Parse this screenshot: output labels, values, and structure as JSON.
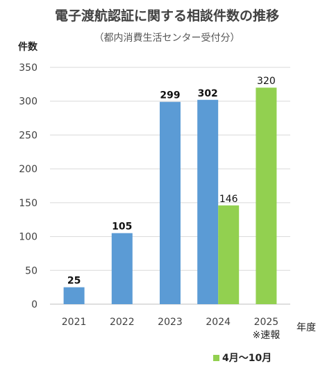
{
  "chart_data": {
    "type": "bar",
    "title": "電子渡航認証に関する相談件数の推移",
    "subtitle": "（都内消費生活センター受付分）",
    "ylabel": "件数",
    "xlabel": "年度",
    "ylim": [
      0,
      350
    ],
    "yticks": [
      0,
      50,
      100,
      150,
      200,
      250,
      300,
      350
    ],
    "grid": true,
    "categories": [
      "2021",
      "2022",
      "2023",
      "2024",
      "2025"
    ],
    "series": [
      {
        "values": [
          25,
          105,
          299,
          302,
          null
        ],
        "color": "#5B9BD5"
      },
      {
        "name": "4月～10月",
        "values": [
          null,
          null,
          null,
          146,
          320
        ],
        "color": "#92D050"
      }
    ],
    "annotations": [
      {
        "category": "2025",
        "text": "※速報"
      }
    ],
    "legend_position": "bottom-right"
  }
}
